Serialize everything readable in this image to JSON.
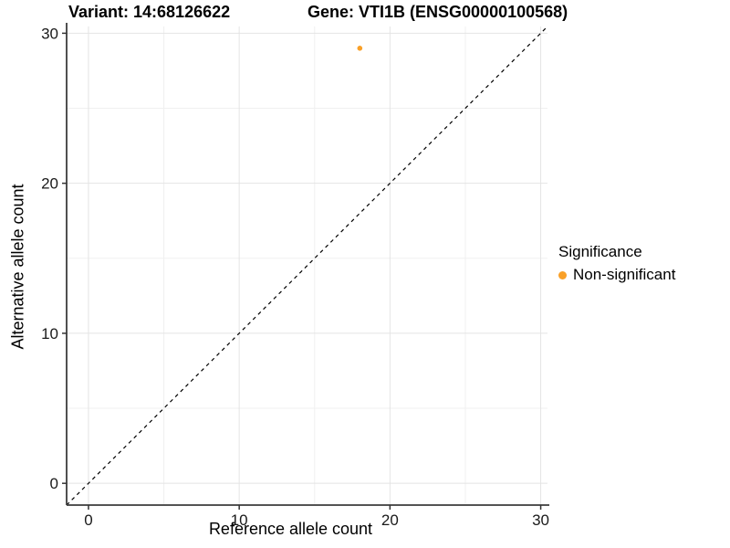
{
  "chart_data": {
    "type": "scatter",
    "title_left": "Variant: 14:68126622",
    "title_right": "Gene: VTI1B (ENSG00000100568)",
    "xlabel": "Reference allele count",
    "ylabel": "Alternative allele count",
    "xlim": [
      -1.45,
      30.45
    ],
    "ylim": [
      -1.45,
      30.45
    ],
    "xticks": [
      0,
      10,
      20,
      30
    ],
    "yticks": [
      0,
      10,
      20,
      30
    ],
    "xticks_minor": [
      5,
      15,
      25
    ],
    "yticks_minor": [
      5,
      15,
      25
    ],
    "grid": true,
    "background": "#ffffff",
    "identity_line": {
      "equation": "y = x",
      "style": "dashed",
      "color": "#000000"
    },
    "series": [
      {
        "name": "Non-significant",
        "color": "#F9A028",
        "marker": "circle",
        "points": [
          {
            "x": 18,
            "y": 29
          }
        ]
      }
    ],
    "legend": {
      "title": "Significance",
      "position": "right",
      "entries": [
        {
          "label": "Non-significant",
          "color": "#F9A028"
        }
      ]
    }
  }
}
